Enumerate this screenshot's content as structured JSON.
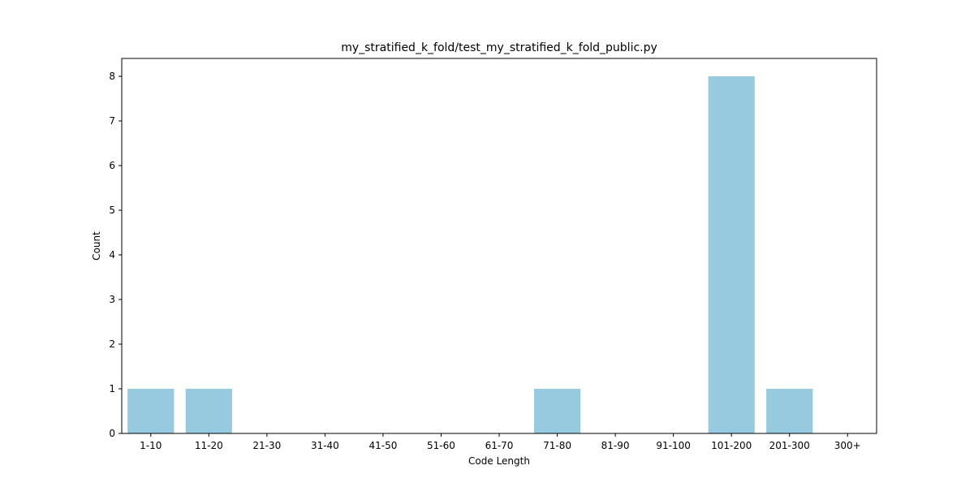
{
  "chart_data": {
    "type": "bar",
    "title": "my_stratified_k_fold/test_my_stratified_k_fold_public.py",
    "xlabel": "Code Length",
    "ylabel": "Count",
    "categories": [
      "1-10",
      "11-20",
      "21-30",
      "31-40",
      "41-50",
      "51-60",
      "61-70",
      "71-80",
      "81-90",
      "91-100",
      "101-200",
      "201-300",
      "300+"
    ],
    "values": [
      1,
      1,
      0,
      0,
      0,
      0,
      0,
      1,
      0,
      0,
      8,
      1,
      0
    ],
    "ylim": [
      0,
      8.4
    ],
    "yticks": [
      0,
      1,
      2,
      3,
      4,
      5,
      6,
      7,
      8
    ],
    "bar_color": "#95cadf",
    "grid": false,
    "legend": "none"
  }
}
